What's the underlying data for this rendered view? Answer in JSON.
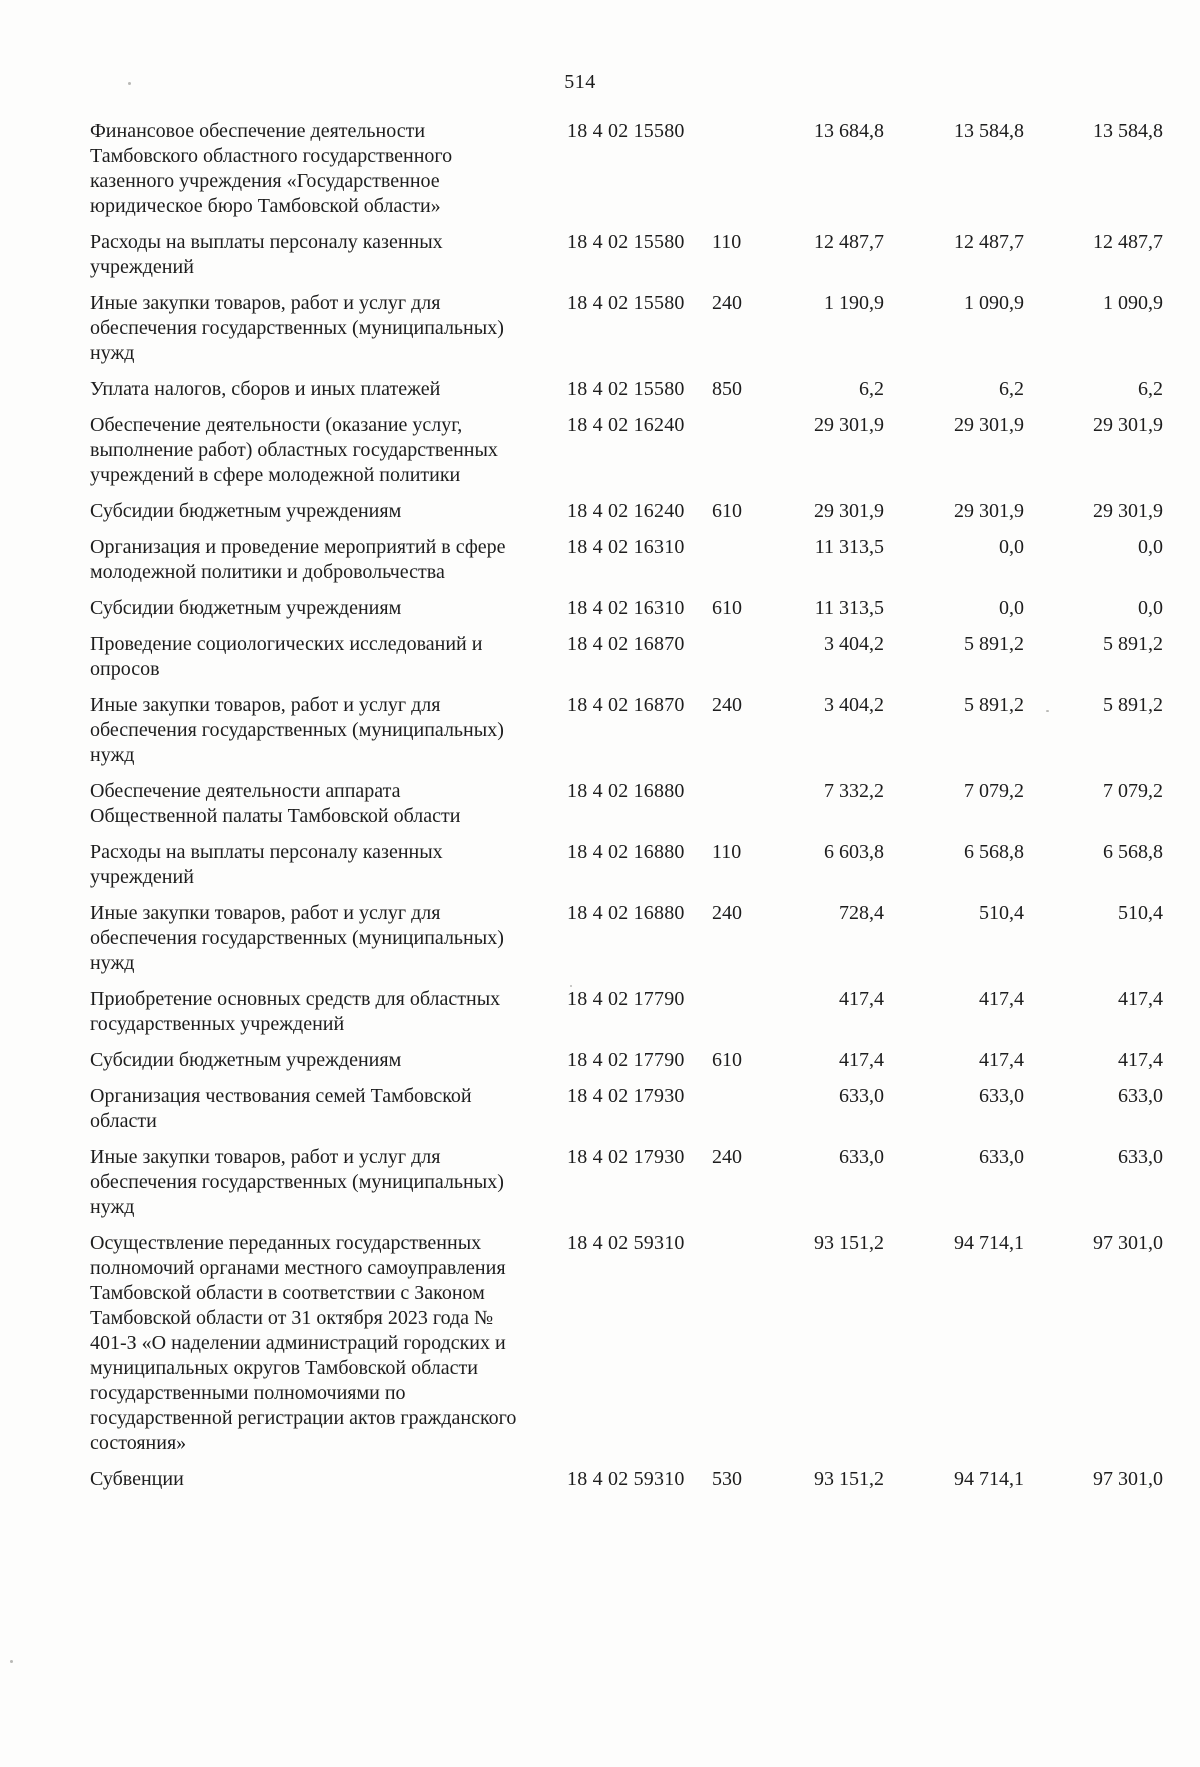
{
  "page": {
    "number": "514"
  },
  "table": {
    "rows": [
      {
        "name": "Финансовое обеспечение деятельности Тамбовского областного государственного казенного учреждения «Государственное юридическое бюро Тамбовской области»",
        "code": "18 4 02 15580",
        "vr": "",
        "v1": "13 684,8",
        "v2": "13 584,8",
        "v3": "13 584,8"
      },
      {
        "name": "Расходы на выплаты персоналу казенных учреждений",
        "code": "18 4 02 15580",
        "vr": "110",
        "v1": "12 487,7",
        "v2": "12 487,7",
        "v3": "12 487,7"
      },
      {
        "name": "Иные закупки товаров, работ и услуг для обеспечения государственных (муниципальных) нужд",
        "code": "18 4 02 15580",
        "vr": "240",
        "v1": "1 190,9",
        "v2": "1 090,9",
        "v3": "1 090,9"
      },
      {
        "name": "Уплата налогов, сборов и иных платежей",
        "code": "18 4 02 15580",
        "vr": "850",
        "v1": "6,2",
        "v2": "6,2",
        "v3": "6,2"
      },
      {
        "name": "Обеспечение деятельности (оказание услуг, выполнение работ) областных государственных учреждений в сфере молодежной политики",
        "code": "18 4 02 16240",
        "vr": "",
        "v1": "29 301,9",
        "v2": "29 301,9",
        "v3": "29 301,9"
      },
      {
        "name": "Субсидии бюджетным учреждениям",
        "code": "18 4 02 16240",
        "vr": "610",
        "v1": "29 301,9",
        "v2": "29 301,9",
        "v3": "29 301,9"
      },
      {
        "name": "Организация и проведение мероприятий в сфере молодежной политики и добровольчества",
        "code": "18 4 02 16310",
        "vr": "",
        "v1": "11 313,5",
        "v2": "0,0",
        "v3": "0,0"
      },
      {
        "name": "Субсидии бюджетным учреждениям",
        "code": "18 4 02 16310",
        "vr": "610",
        "v1": "11 313,5",
        "v2": "0,0",
        "v3": "0,0"
      },
      {
        "name": "Проведение социологических исследований и опросов",
        "code": "18 4 02 16870",
        "vr": "",
        "v1": "3 404,2",
        "v2": "5 891,2",
        "v3": "5 891,2"
      },
      {
        "name": "Иные закупки товаров, работ и услуг для обеспечения государственных (муниципальных) нужд",
        "code": "18 4 02 16870",
        "vr": "240",
        "v1": "3 404,2",
        "v2": "5 891,2",
        "v3": "5 891,2"
      },
      {
        "name": "Обеспечение деятельности аппарата Общественной палаты Тамбовской области",
        "code": "18 4 02 16880",
        "vr": "",
        "v1": "7 332,2",
        "v2": "7 079,2",
        "v3": "7 079,2"
      },
      {
        "name": "Расходы на выплаты персоналу казенных учреждений",
        "code": "18 4 02 16880",
        "vr": "110",
        "v1": "6 603,8",
        "v2": "6 568,8",
        "v3": "6 568,8"
      },
      {
        "name": "Иные закупки товаров, работ и услуг для обеспечения государственных (муниципальных) нужд",
        "code": "18 4 02 16880",
        "vr": "240",
        "v1": "728,4",
        "v2": "510,4",
        "v3": "510,4"
      },
      {
        "name": "Приобретение основных средств для областных государственных учреждений",
        "code": "18 4 02 17790",
        "vr": "",
        "v1": "417,4",
        "v2": "417,4",
        "v3": "417,4"
      },
      {
        "name": "Субсидии бюджетным учреждениям",
        "code": "18 4 02 17790",
        "vr": "610",
        "v1": "417,4",
        "v2": "417,4",
        "v3": "417,4"
      },
      {
        "name": "Организация чествования семей Тамбовской области",
        "code": "18 4 02 17930",
        "vr": "",
        "v1": "633,0",
        "v2": "633,0",
        "v3": "633,0"
      },
      {
        "name": "Иные закупки товаров, работ и услуг для обеспечения государственных (муниципальных) нужд",
        "code": "18 4 02 17930",
        "vr": "240",
        "v1": "633,0",
        "v2": "633,0",
        "v3": "633,0"
      },
      {
        "name": "Осуществление переданных государственных полномочий органами местного самоуправления Тамбовской области в соответствии с Законом Тамбовской области от 31 октября 2023 года № 401-З «О наделении администраций городских и муниципальных округов Тамбовской области государственными полномочиями по государственной регистрации актов гражданского состояния»",
        "code": "18 4 02 59310",
        "vr": "",
        "v1": "93 151,2",
        "v2": "94 714,1",
        "v3": "97 301,0"
      },
      {
        "name": "Субвенции",
        "code": "18 4 02 59310",
        "vr": "530",
        "v1": "93 151,2",
        "v2": "94 714,1",
        "v3": "97 301,0"
      }
    ]
  }
}
